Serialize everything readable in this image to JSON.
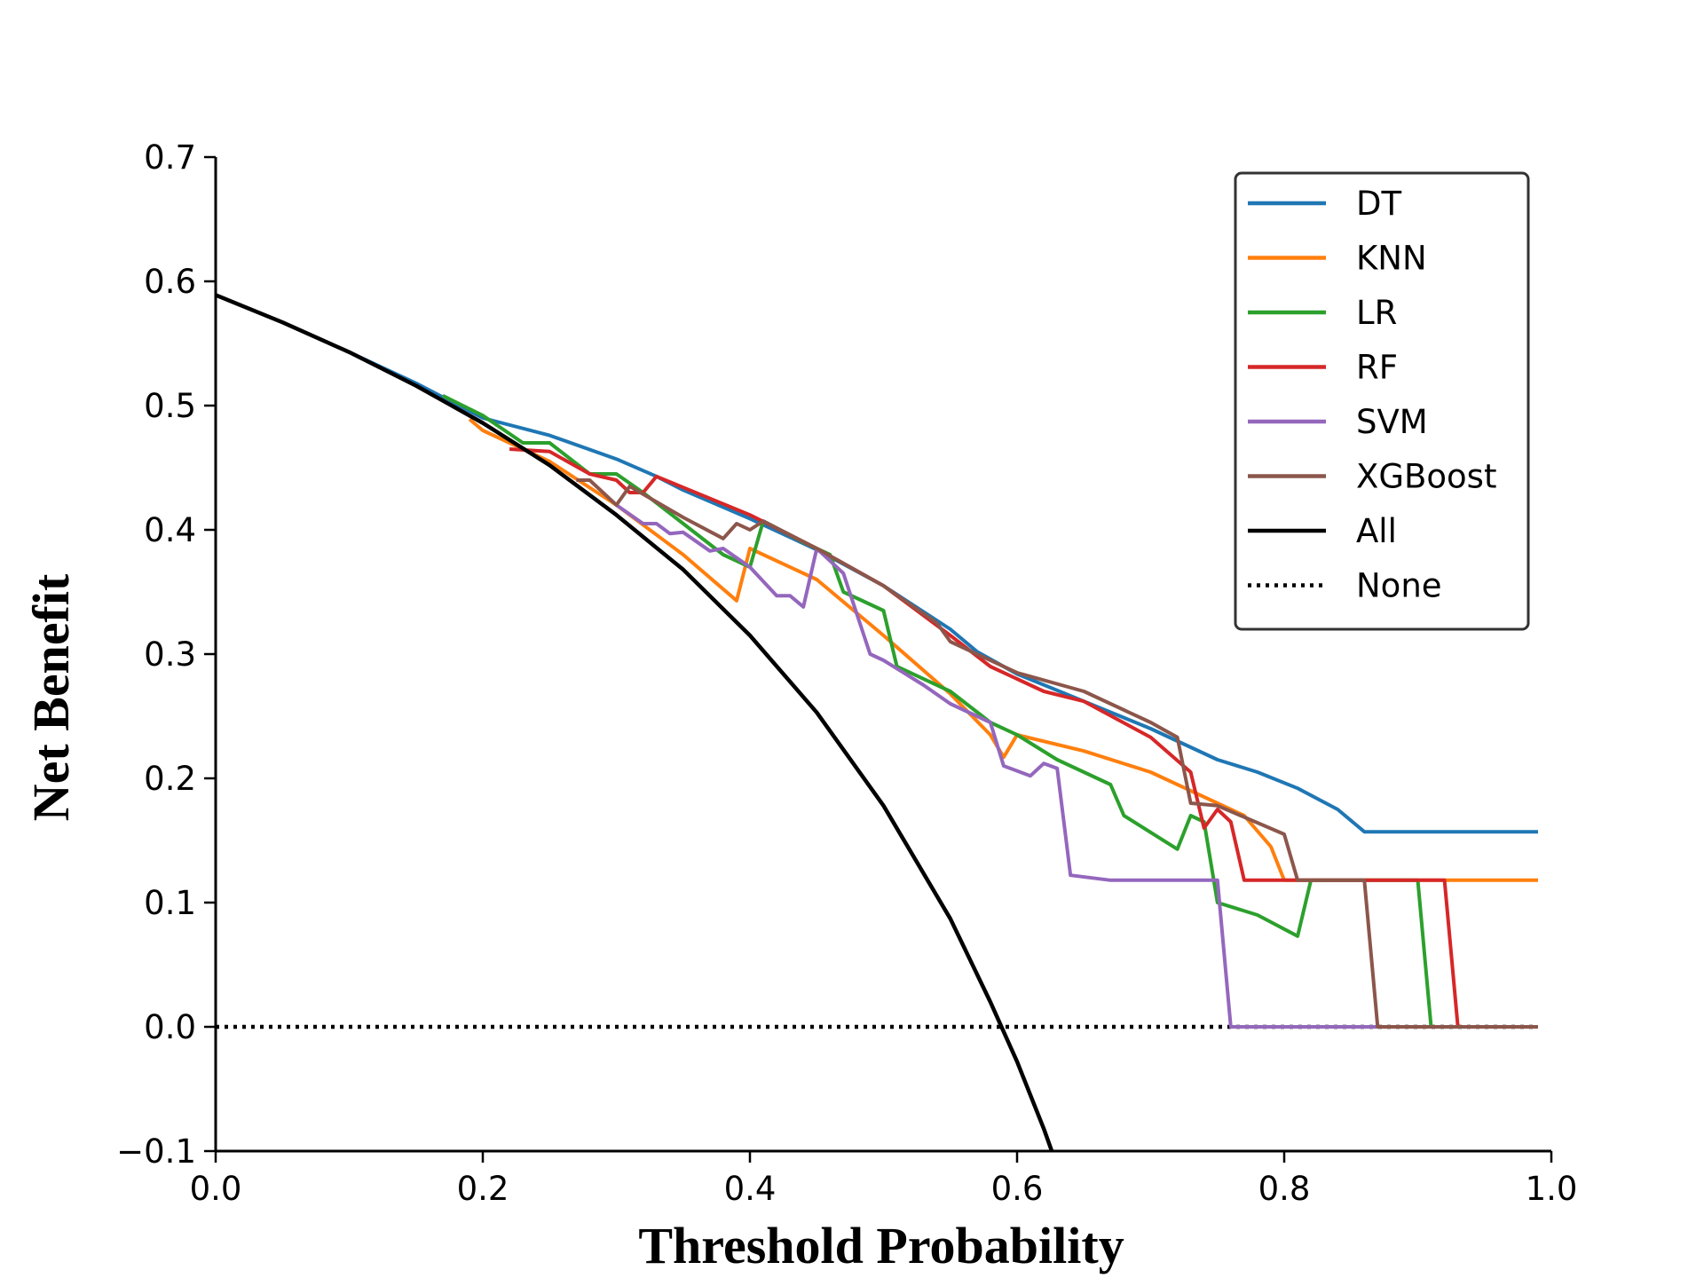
{
  "chart_data": {
    "type": "line",
    "xlabel": "Threshold Probability",
    "ylabel": "Net Benefit",
    "xlim": [
      0.0,
      1.0
    ],
    "ylim": [
      -0.1,
      0.7
    ],
    "xticks": [
      "0.0",
      "0.2",
      "0.4",
      "0.6",
      "0.8",
      "1.0"
    ],
    "yticks": [
      "−0.1",
      "0.0",
      "0.1",
      "0.2",
      "0.3",
      "0.4",
      "0.5",
      "0.6",
      "0.7"
    ],
    "grid": false,
    "legend_position": "top-right",
    "series": [
      {
        "name": "DT",
        "color": "#1f77b4",
        "style": "solid",
        "x": [
          0.0,
          0.05,
          0.1,
          0.15,
          0.2,
          0.25,
          0.3,
          0.33,
          0.35,
          0.4,
          0.45,
          0.5,
          0.55,
          0.57,
          0.6,
          0.65,
          0.7,
          0.72,
          0.75,
          0.78,
          0.81,
          0.84,
          0.86,
          0.99
        ],
        "y": [
          0.589,
          0.567,
          0.543,
          0.518,
          0.49,
          0.476,
          0.457,
          0.443,
          0.432,
          0.409,
          0.384,
          0.355,
          0.32,
          0.302,
          0.284,
          0.262,
          0.24,
          0.23,
          0.215,
          0.205,
          0.192,
          0.175,
          0.157,
          0.157
        ]
      },
      {
        "name": "KNN",
        "color": "#ff7f0e",
        "style": "solid",
        "x": [
          0.19,
          0.2,
          0.25,
          0.3,
          0.35,
          0.39,
          0.4,
          0.45,
          0.5,
          0.55,
          0.58,
          0.59,
          0.6,
          0.65,
          0.7,
          0.75,
          0.77,
          0.79,
          0.8,
          0.99
        ],
        "y": [
          0.489,
          0.48,
          0.455,
          0.42,
          0.38,
          0.343,
          0.385,
          0.36,
          0.315,
          0.268,
          0.235,
          0.217,
          0.235,
          0.222,
          0.205,
          0.18,
          0.17,
          0.145,
          0.118,
          0.118
        ]
      },
      {
        "name": "LR",
        "color": "#2ca02c",
        "style": "solid",
        "x": [
          0.17,
          0.2,
          0.23,
          0.25,
          0.28,
          0.3,
          0.32,
          0.35,
          0.38,
          0.4,
          0.41,
          0.44,
          0.46,
          0.47,
          0.5,
          0.51,
          0.55,
          0.58,
          0.6,
          0.63,
          0.67,
          0.68,
          0.72,
          0.73,
          0.74,
          0.75,
          0.78,
          0.81,
          0.82,
          0.9,
          0.91,
          0.99
        ],
        "y": [
          0.508,
          0.492,
          0.47,
          0.47,
          0.445,
          0.445,
          0.43,
          0.405,
          0.38,
          0.37,
          0.407,
          0.39,
          0.38,
          0.35,
          0.335,
          0.29,
          0.27,
          0.245,
          0.235,
          0.215,
          0.195,
          0.17,
          0.143,
          0.17,
          0.165,
          0.1,
          0.09,
          0.073,
          0.118,
          0.118,
          0.0,
          0.0
        ]
      },
      {
        "name": "RF",
        "color": "#d62728",
        "style": "solid",
        "x": [
          0.22,
          0.25,
          0.28,
          0.3,
          0.31,
          0.32,
          0.33,
          0.4,
          0.45,
          0.5,
          0.55,
          0.58,
          0.6,
          0.62,
          0.65,
          0.7,
          0.73,
          0.74,
          0.75,
          0.76,
          0.77,
          0.92,
          0.93,
          0.99
        ],
        "y": [
          0.465,
          0.463,
          0.445,
          0.44,
          0.43,
          0.43,
          0.443,
          0.412,
          0.385,
          0.355,
          0.315,
          0.29,
          0.28,
          0.27,
          0.262,
          0.233,
          0.205,
          0.16,
          0.175,
          0.165,
          0.118,
          0.118,
          0.0,
          0.0
        ]
      },
      {
        "name": "SVM",
        "color": "#9467bd",
        "style": "solid",
        "x": [
          0.3,
          0.32,
          0.33,
          0.34,
          0.35,
          0.37,
          0.38,
          0.4,
          0.42,
          0.43,
          0.44,
          0.45,
          0.47,
          0.49,
          0.5,
          0.53,
          0.55,
          0.58,
          0.59,
          0.61,
          0.62,
          0.63,
          0.64,
          0.67,
          0.7,
          0.75,
          0.76,
          0.99
        ],
        "y": [
          0.42,
          0.405,
          0.405,
          0.397,
          0.398,
          0.383,
          0.385,
          0.37,
          0.347,
          0.347,
          0.338,
          0.385,
          0.365,
          0.3,
          0.295,
          0.275,
          0.26,
          0.245,
          0.21,
          0.202,
          0.212,
          0.208,
          0.122,
          0.118,
          0.118,
          0.118,
          0.0,
          0.0
        ]
      },
      {
        "name": "XGBoost",
        "color": "#8c564b",
        "style": "solid",
        "x": [
          0.27,
          0.28,
          0.29,
          0.3,
          0.31,
          0.35,
          0.38,
          0.39,
          0.4,
          0.41,
          0.45,
          0.5,
          0.54,
          0.55,
          0.6,
          0.65,
          0.7,
          0.72,
          0.73,
          0.75,
          0.8,
          0.81,
          0.86,
          0.87,
          0.99
        ],
        "y": [
          0.44,
          0.44,
          0.43,
          0.42,
          0.435,
          0.41,
          0.393,
          0.405,
          0.4,
          0.407,
          0.385,
          0.355,
          0.325,
          0.31,
          0.285,
          0.27,
          0.245,
          0.233,
          0.18,
          0.178,
          0.155,
          0.118,
          0.118,
          0.0,
          0.0
        ]
      },
      {
        "name": "All",
        "color": "#000000",
        "style": "solid",
        "x": [
          0.0,
          0.05,
          0.1,
          0.15,
          0.2,
          0.25,
          0.3,
          0.35,
          0.4,
          0.45,
          0.5,
          0.55,
          0.58,
          0.6,
          0.62,
          0.626
        ],
        "y": [
          0.589,
          0.567,
          0.543,
          0.516,
          0.486,
          0.452,
          0.412,
          0.368,
          0.315,
          0.253,
          0.178,
          0.087,
          0.02,
          -0.028,
          -0.082,
          -0.1
        ]
      },
      {
        "name": "None",
        "color": "#000000",
        "style": "dotted",
        "x": [
          0.0,
          0.99
        ],
        "y": [
          0.0,
          0.0
        ]
      }
    ]
  }
}
